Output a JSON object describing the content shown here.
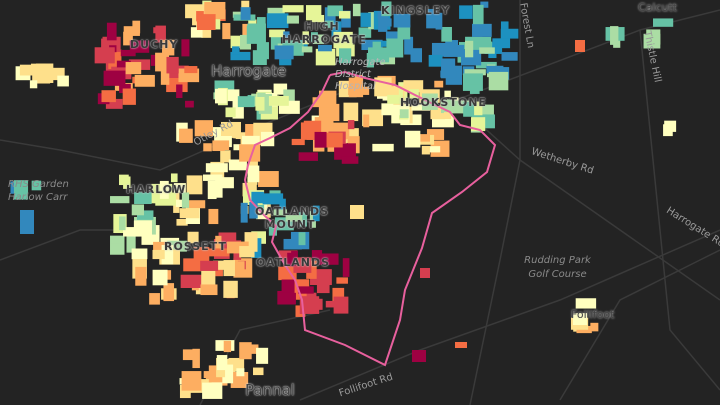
{
  "map": {
    "background_color": "#232323",
    "road_color": "#3a3a3a",
    "boundary_color": "#e8609e",
    "palette": [
      "#9e0142",
      "#d53e4f",
      "#f46d43",
      "#fdae61",
      "#fee08b",
      "#ffffbf",
      "#e6f598",
      "#abdda4",
      "#66c2a5",
      "#3288bd",
      "#1d91c0"
    ],
    "district_labels": [
      "DUCHY",
      "HIGH HARROGATE",
      "KINGSLEY",
      "HOOKSTONE",
      "HARLOW",
      "OATLANDS MOUNT",
      "ROSSETT",
      "OATLANDS"
    ],
    "town_labels": [
      "Harrogate",
      "Pannal",
      "Follifoot",
      "Calcutt"
    ],
    "poi_labels": [
      "RHS Garden Harlow Carr",
      "Harrogate District Hospital",
      "Rudding Park Golf Course"
    ],
    "road_labels": [
      "Otley Rd",
      "Wetherby Rd",
      "Harrogate Rd",
      "Follifoot Rd",
      "Thistle Hill",
      "Forest Ln"
    ]
  }
}
